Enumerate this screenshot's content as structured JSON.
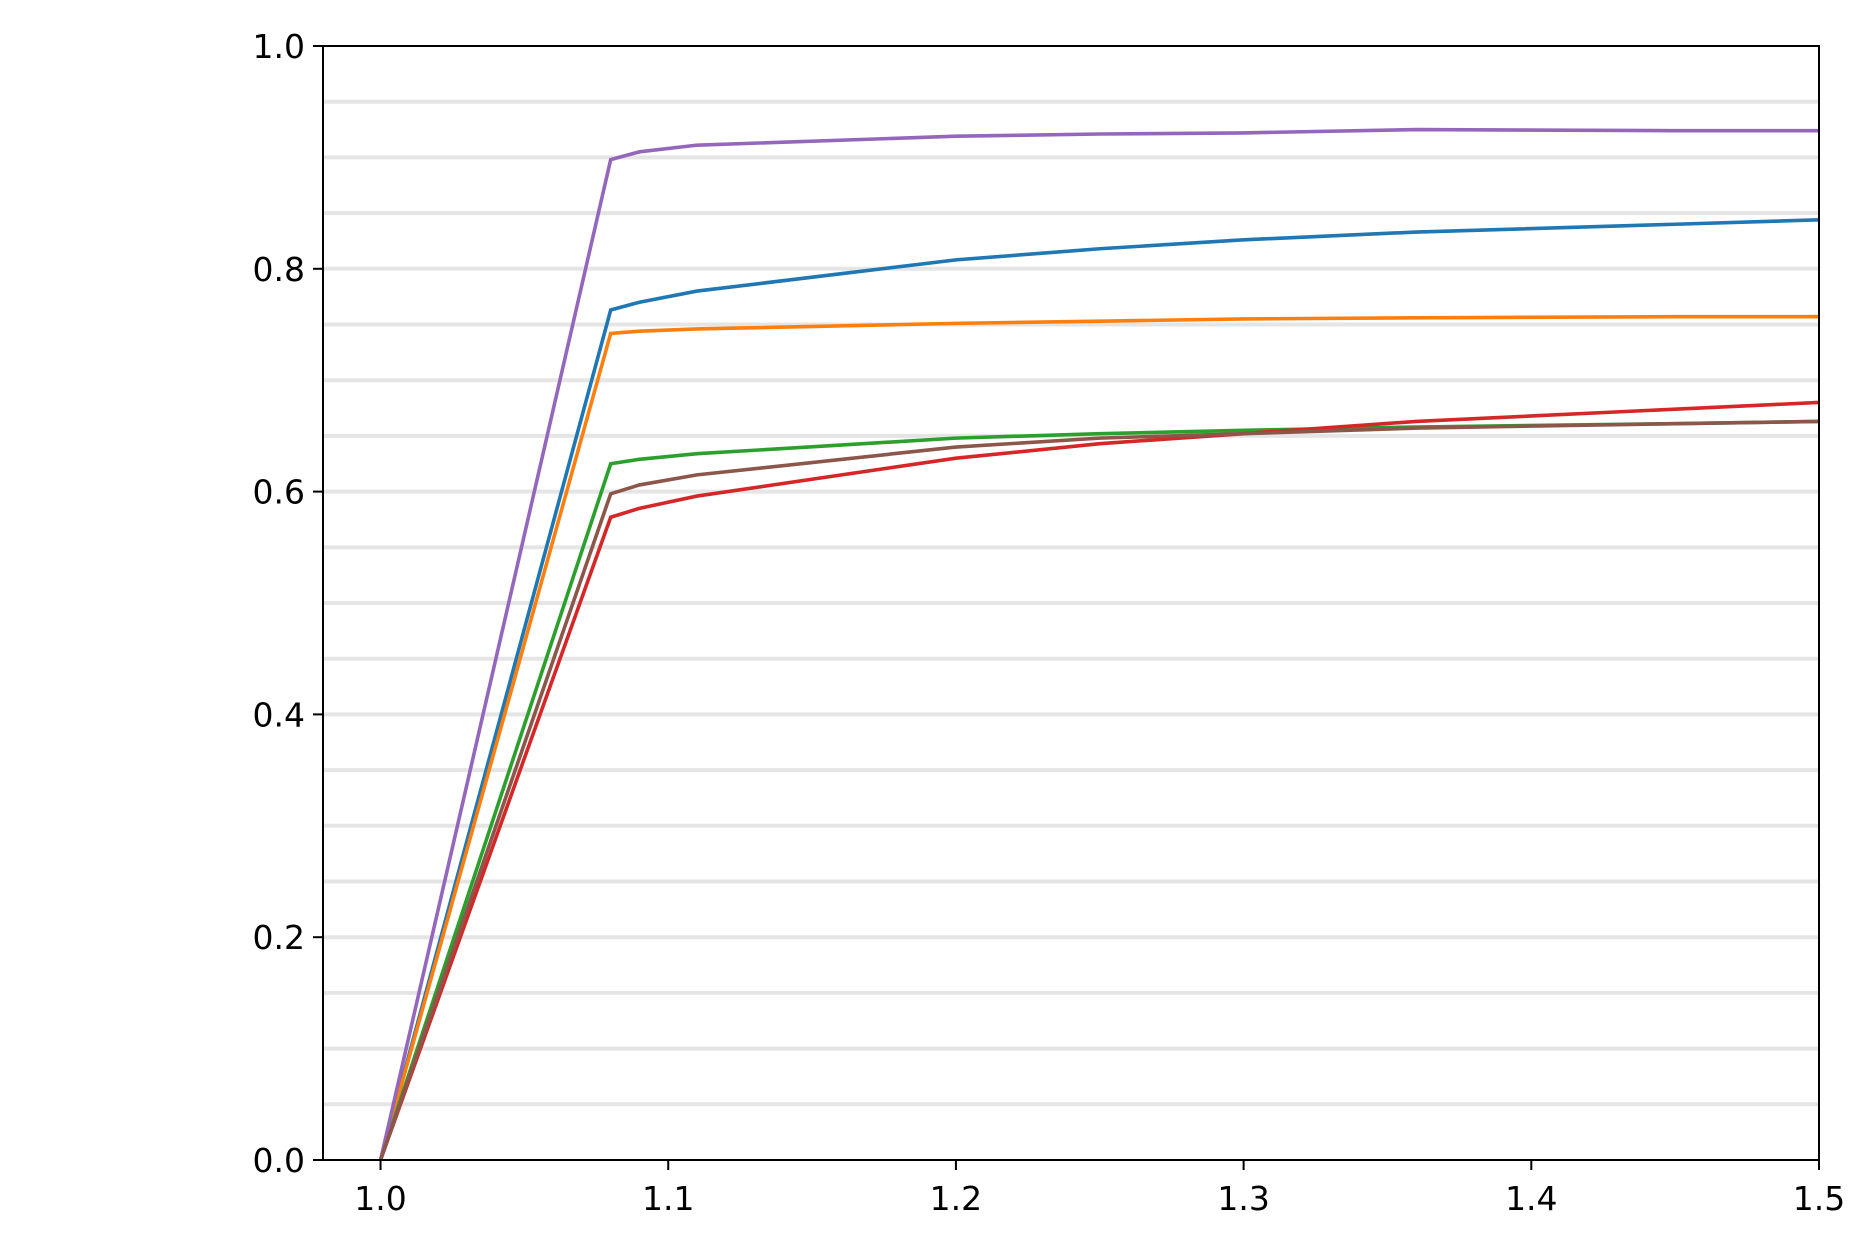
{
  "chart_data": {
    "type": "line",
    "x": [
      1.0,
      1.08,
      1.09,
      1.11,
      1.2,
      1.25,
      1.3,
      1.36,
      1.45,
      1.5
    ],
    "series": [
      {
        "color": "#1f77b4",
        "values": [
          0,
          0.763,
          0.77,
          0.78,
          0.808,
          0.818,
          0.826,
          0.833,
          0.84,
          0.844
        ]
      },
      {
        "color": "#ff7f0e",
        "values": [
          0,
          0.742,
          0.744,
          0.746,
          0.751,
          0.753,
          0.755,
          0.756,
          0.757,
          0.757
        ]
      },
      {
        "color": "#2ca02c",
        "values": [
          0,
          0.625,
          0.629,
          0.634,
          0.648,
          0.652,
          0.655,
          0.658,
          0.661,
          0.663
        ]
      },
      {
        "color": "#d62728",
        "values": [
          0,
          0.577,
          0.585,
          0.596,
          0.63,
          0.643,
          0.652,
          0.663,
          0.674,
          0.68
        ]
      },
      {
        "color": "#9467bd",
        "values": [
          0,
          0.898,
          0.905,
          0.911,
          0.919,
          0.921,
          0.922,
          0.925,
          0.924,
          0.924
        ]
      },
      {
        "color": "#8c564b",
        "values": [
          0,
          0.598,
          0.606,
          0.615,
          0.64,
          0.648,
          0.652,
          0.657,
          0.661,
          0.663
        ]
      }
    ],
    "xlim": [
      0.98,
      1.5
    ],
    "ylim": [
      0,
      1
    ],
    "xticks": [
      {
        "value": 1.0,
        "label": "1.0"
      },
      1.1,
      1.2,
      1.3,
      1.4,
      1.5
    ],
    "yticks": [
      {
        "value": 0,
        "label": "0.0"
      },
      0.2,
      0.4,
      0.6,
      0.8,
      {
        "value": 1,
        "label": "1.0"
      }
    ],
    "grid": true,
    "grid_color": "#e5e5e5",
    "grid_lines": [
      0.05,
      0.1,
      0.15,
      0.2,
      0.25,
      0.3,
      0.35,
      0.4,
      0.45,
      0.5,
      0.55,
      0.6,
      0.65,
      0.7,
      0.75,
      0.8,
      0.85,
      0.9,
      0.95
    ]
  }
}
